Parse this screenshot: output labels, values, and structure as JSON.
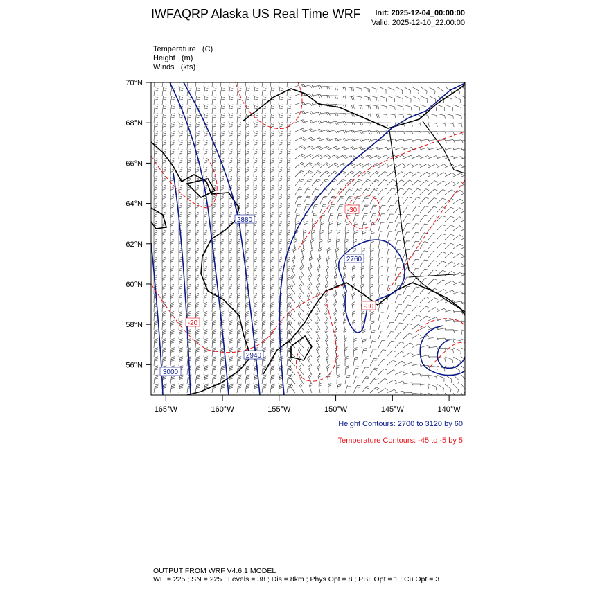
{
  "header": {
    "title": "IWFAQRP Alaska US Real Time WRF",
    "init": "Init: 2025-12-04_00:00:00",
    "valid": "Valid: 2025-12-10_22:00:00"
  },
  "fields": [
    "Temperature   (C)",
    "Height   (m)",
    "Winds   (kts)"
  ],
  "map": {
    "latlim": [
      54.5,
      70
    ],
    "lonlim": [
      -166.3,
      -138.6
    ],
    "lat_ticks": [
      {
        "value": 56,
        "label": "56°N"
      },
      {
        "value": 58,
        "label": "58°N"
      },
      {
        "value": 60,
        "label": "60°N"
      },
      {
        "value": 62,
        "label": "62°N"
      },
      {
        "value": 64,
        "label": "64°N"
      },
      {
        "value": 66,
        "label": "66°N"
      },
      {
        "value": 68,
        "label": "68°N"
      },
      {
        "value": 70,
        "label": "70°N"
      }
    ],
    "lon_ticks": [
      {
        "value": -165,
        "label": "165°W"
      },
      {
        "value": -160,
        "label": "160°W"
      },
      {
        "value": -155,
        "label": "155°W"
      },
      {
        "value": -150,
        "label": "150°W"
      },
      {
        "value": -145,
        "label": "145°W"
      },
      {
        "value": -140,
        "label": "140°W"
      }
    ],
    "height_labels": [
      "2880",
      "2760",
      "2940",
      "3000"
    ],
    "temperature_labels": [
      "-30",
      "-30",
      "-20"
    ]
  },
  "legend": {
    "height": "Height Contours: 2700 to 3120 by 60",
    "temperature": "Temperature Contours: -45 to -5 by 5"
  },
  "footer": {
    "line1": "OUTPUT FROM WRF V4.6.1 MODEL",
    "line2": "WE = 225 ; SN = 225 ; Levels = 38 ; Dis = 8km ; Phys Opt = 8 ; PBL Opt = 1 ; Cu Opt = 3"
  }
}
